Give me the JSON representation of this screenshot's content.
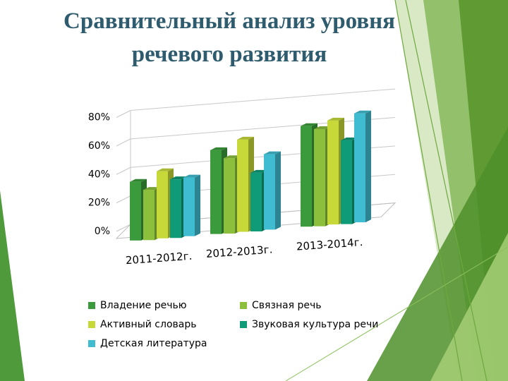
{
  "slide": {
    "title_line1": "Сравнительный анализ уровня",
    "title_line2": "речевого развития"
  },
  "chart_data": {
    "type": "bar",
    "title": "",
    "categories": [
      "2011-2012г.",
      "2012-2013г.",
      "2013-2014г."
    ],
    "y_ticks": [
      "0%",
      "20%",
      "40%",
      "60%",
      "80%"
    ],
    "ylim": [
      0,
      80
    ],
    "grid": true,
    "legend_position": "bottom",
    "series": [
      {
        "name": "Владение речью",
        "color": "#3b9a3b",
        "values": [
          35,
          50,
          60
        ]
      },
      {
        "name": "Связная речь",
        "color": "#8bbf3c",
        "values": [
          30,
          45,
          58
        ]
      },
      {
        "name": "Активный словарь",
        "color": "#c6d938",
        "values": [
          40,
          55,
          62
        ]
      },
      {
        "name": "Звуковая культура речи",
        "color": "#0f9a78",
        "values": [
          35,
          35,
          50
        ]
      },
      {
        "name": "Детская литература",
        "color": "#3fbcd0",
        "values": [
          35,
          45,
          65
        ]
      }
    ]
  }
}
